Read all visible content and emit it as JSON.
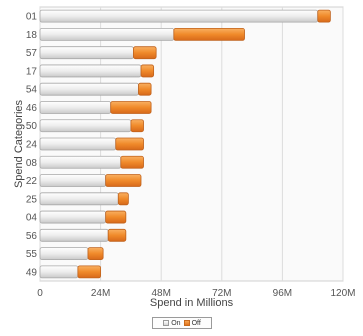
{
  "chart_data": {
    "type": "bar",
    "orientation": "horizontal",
    "stacked": true,
    "categories": [
      "01",
      "18",
      "57",
      "17",
      "54",
      "46",
      "50",
      "24",
      "08",
      "22",
      "25",
      "04",
      "56",
      "55",
      "49"
    ],
    "series": [
      {
        "name": "On",
        "values": [
          110,
          53,
          37,
          40,
          39,
          28,
          36,
          30,
          32,
          26,
          31,
          26,
          27,
          19,
          15
        ],
        "color": "#e8e8e8"
      },
      {
        "name": "Off",
        "values": [
          5,
          28,
          9,
          5,
          5,
          16,
          5,
          11,
          9,
          14,
          4,
          8,
          7,
          6,
          9
        ],
        "color": "#f08a2a"
      }
    ],
    "xlabel": "Spend in Millions",
    "ylabel": "Spend Categories",
    "xlim": [
      0,
      120
    ],
    "x_ticks": [
      "0",
      "24M",
      "48M",
      "72M",
      "96M",
      "120M"
    ],
    "grid": true,
    "legend_position": "bottom"
  }
}
